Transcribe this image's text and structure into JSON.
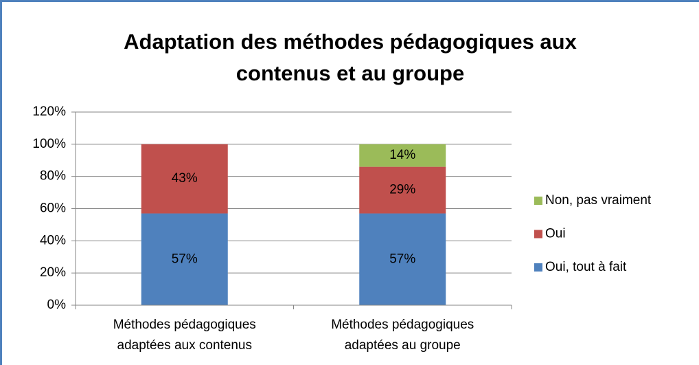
{
  "chart_data": {
    "type": "stacked_bar",
    "title": "Adaptation des méthodes pédagogiques aux contenus et au groupe",
    "categories": [
      "Méthodes pédagogiques adaptées aux contenus",
      "Méthodes pédagogiques adaptées au groupe"
    ],
    "series": [
      {
        "name": "Oui, tout à fait",
        "color": "#4f81bd",
        "values": [
          57,
          57
        ],
        "value_labels": [
          "57%",
          "57%"
        ]
      },
      {
        "name": "Oui",
        "color": "#c0504d",
        "values": [
          43,
          29
        ],
        "value_labels": [
          "43%",
          "29%"
        ]
      },
      {
        "name": "Non, pas vraiment",
        "color": "#9bbb59",
        "values": [
          null,
          14
        ],
        "value_labels": [
          null,
          "14%"
        ]
      }
    ],
    "ylim": [
      0,
      120
    ],
    "yticks": [
      {
        "value": 0,
        "label": "0%"
      },
      {
        "value": 20,
        "label": "20%"
      },
      {
        "value": 40,
        "label": "40%"
      },
      {
        "value": 60,
        "label": "60%"
      },
      {
        "value": 80,
        "label": "80%"
      },
      {
        "value": 100,
        "label": "100%"
      },
      {
        "value": 120,
        "label": "120%"
      }
    ],
    "grid": true,
    "legend": "right"
  }
}
